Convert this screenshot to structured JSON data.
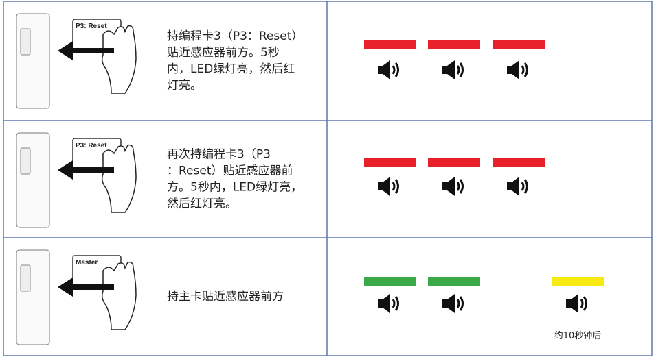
{
  "rows": [
    {
      "card_label": "P3: Reset",
      "description": [
        "持编程卡3（P3：Reset）",
        "贴近感应器前方。5秒",
        "内，LED绿灯亮，然后红",
        "灯亮。"
      ]
    },
    {
      "card_label": "P3: Reset",
      "description": [
        "再次持编程卡3（P3",
        "：Reset）贴近感应器前",
        "方。5秒内，LED绿灯亮，",
        "然后红灯亮。"
      ]
    },
    {
      "card_label": "Master",
      "description": [
        "持主卡贴近感应器前方"
      ],
      "note": "约10秒钟后"
    }
  ]
}
